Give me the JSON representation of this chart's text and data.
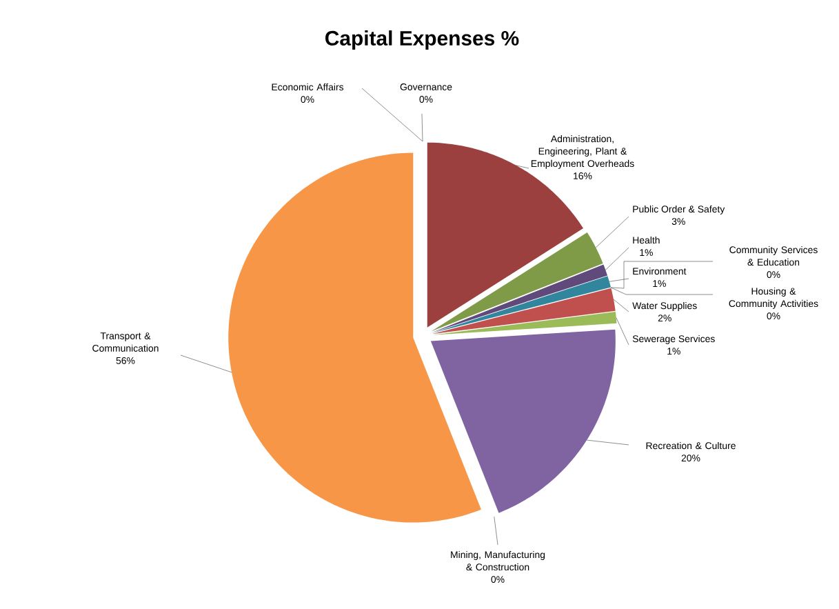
{
  "chart_data": {
    "type": "pie",
    "title": "Capital Expenses %",
    "categories": [
      "Governance",
      "Administration, Engineering, Plant & Employment Overheads",
      "Public Order & Safety",
      "Health",
      "Environment",
      "Community Services & Education",
      "Housing & Community Activities",
      "Water Supplies",
      "Sewerage Services",
      "Recreation & Culture",
      "Mining, Manufacturing & Construction",
      "Transport & Communication",
      "Economic Affairs"
    ],
    "values": [
      0,
      16,
      3,
      1,
      1,
      0,
      0,
      2,
      1,
      20,
      0,
      56,
      0
    ],
    "value_labels": [
      "0%",
      "16%",
      "3%",
      "1%",
      "1%",
      "0%",
      "0%",
      "2%",
      "1%",
      "20%",
      "0%",
      "56%",
      "0%"
    ],
    "colors": [
      "#a7c0de",
      "#9b403e",
      "#7f9b48",
      "#604a7b",
      "#31859c",
      "#f79646",
      "#4f81bd",
      "#c0504d",
      "#9bbb59",
      "#8064a2",
      "#4bacc6",
      "#f79646",
      "#a7c0de"
    ]
  }
}
